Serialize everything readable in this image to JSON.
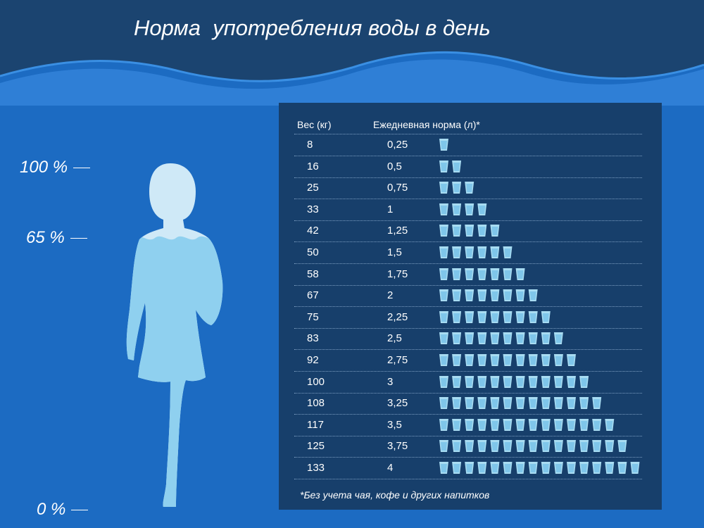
{
  "title": "Норма  употребления воды в день",
  "colors": {
    "header_dark": "#1b4470",
    "background_blue": "#1c6bc2",
    "wave_light": "#3a8fe3",
    "panel": "#173f6b",
    "silhouette_light": "#cfe9f7",
    "silhouette_water": "#8fd0ef",
    "cup": "#a8dcf2"
  },
  "scale_labels": {
    "top": "100 %",
    "middle": "65 %",
    "bottom": "0 %"
  },
  "chart_data": {
    "type": "table",
    "columns": [
      "Вес (кг)",
      "Ежедневная норма (л)*"
    ],
    "rows": [
      {
        "weight": "8",
        "norm": "0,25",
        "cups": 1
      },
      {
        "weight": "16",
        "norm": "0,5",
        "cups": 2
      },
      {
        "weight": "25",
        "norm": "0,75",
        "cups": 3
      },
      {
        "weight": "33",
        "norm": "1",
        "cups": 4
      },
      {
        "weight": "42",
        "norm": "1,25",
        "cups": 5
      },
      {
        "weight": "50",
        "norm": "1,5",
        "cups": 6
      },
      {
        "weight": "58",
        "norm": "1,75",
        "cups": 7
      },
      {
        "weight": "67",
        "norm": "2",
        "cups": 8
      },
      {
        "weight": "75",
        "norm": "2,25",
        "cups": 9
      },
      {
        "weight": "83",
        "norm": "2,5",
        "cups": 10
      },
      {
        "weight": "92",
        "norm": "2,75",
        "cups": 11
      },
      {
        "weight": "100",
        "norm": "3",
        "cups": 12
      },
      {
        "weight": "108",
        "norm": "3,25",
        "cups": 13
      },
      {
        "weight": "117",
        "norm": "3,5",
        "cups": 14
      },
      {
        "weight": "125",
        "norm": "3,75",
        "cups": 15
      },
      {
        "weight": "133",
        "norm": "4",
        "cups": 16
      }
    ],
    "footnote": "*Без учета чая, кофе и других напитков"
  }
}
